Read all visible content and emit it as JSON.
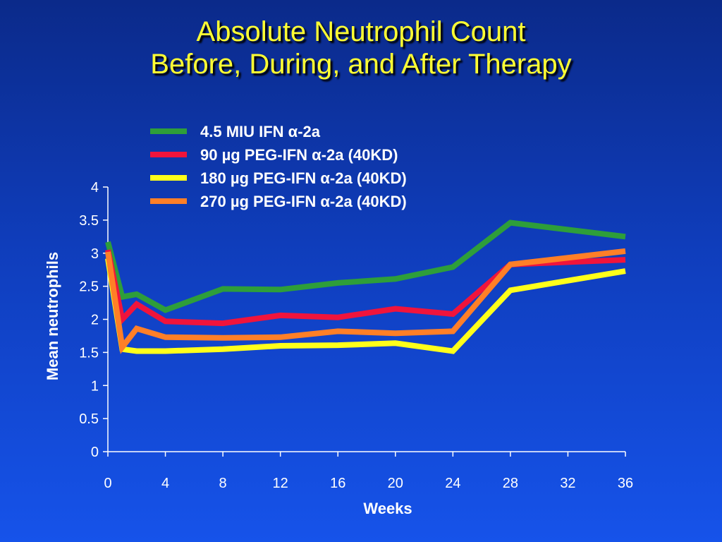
{
  "title": {
    "line1": "Absolute Neutrophil Count",
    "line2": "Before, During, and After Therapy"
  },
  "chart_data": {
    "type": "line",
    "title": "Absolute Neutrophil Count Before, During, and After Therapy",
    "xlabel": "Weeks",
    "ylabel": "Mean neutrophils",
    "xlim": [
      0,
      36
    ],
    "ylim": [
      0,
      4
    ],
    "x_ticks": [
      "0",
      "4",
      "8",
      "12",
      "16",
      "20",
      "24",
      "28",
      "32",
      "36"
    ],
    "y_ticks": [
      "0",
      "0.5",
      "1",
      "1.5",
      "2",
      "2.5",
      "3",
      "3.5",
      "4"
    ],
    "grid": false,
    "legend_position": "top-center",
    "series": [
      {
        "name": "4.5 MIU IFN α-2a",
        "color": "#2e9e3a",
        "points": [
          [
            0,
            3.17
          ],
          [
            1,
            2.34
          ],
          [
            2,
            2.38
          ],
          [
            4,
            2.14
          ],
          [
            8,
            2.46
          ],
          [
            12,
            2.45
          ],
          [
            16,
            2.55
          ],
          [
            20,
            2.61
          ],
          [
            24,
            2.79
          ],
          [
            28,
            3.46
          ],
          [
            36,
            3.25
          ]
        ]
      },
      {
        "name": "90 µg PEG-IFN α-2a (40KD)",
        "color": "#f0143c",
        "points": [
          [
            0,
            3.05
          ],
          [
            1,
            2.0
          ],
          [
            2,
            2.23
          ],
          [
            4,
            1.97
          ],
          [
            8,
            1.94
          ],
          [
            12,
            2.06
          ],
          [
            16,
            2.03
          ],
          [
            20,
            2.16
          ],
          [
            24,
            2.08
          ],
          [
            28,
            2.83
          ],
          [
            36,
            2.9
          ]
        ]
      },
      {
        "name": "180 µg PEG-IFN α-2a (40KD)",
        "color": "#ffff1a",
        "points": [
          [
            0,
            2.92
          ],
          [
            1,
            1.55
          ],
          [
            2,
            1.52
          ],
          [
            4,
            1.52
          ],
          [
            8,
            1.55
          ],
          [
            12,
            1.6
          ],
          [
            16,
            1.61
          ],
          [
            20,
            1.64
          ],
          [
            24,
            1.52
          ],
          [
            28,
            2.44
          ],
          [
            36,
            2.73
          ]
        ]
      },
      {
        "name": "270 µg PEG-IFN α-2a (40KD)",
        "color": "#ff7f27",
        "points": [
          [
            0,
            3.02
          ],
          [
            1,
            1.58
          ],
          [
            2,
            1.86
          ],
          [
            4,
            1.73
          ],
          [
            8,
            1.72
          ],
          [
            12,
            1.73
          ],
          [
            16,
            1.82
          ],
          [
            20,
            1.79
          ],
          [
            24,
            1.82
          ],
          [
            28,
            2.83
          ],
          [
            36,
            3.03
          ]
        ]
      }
    ]
  }
}
